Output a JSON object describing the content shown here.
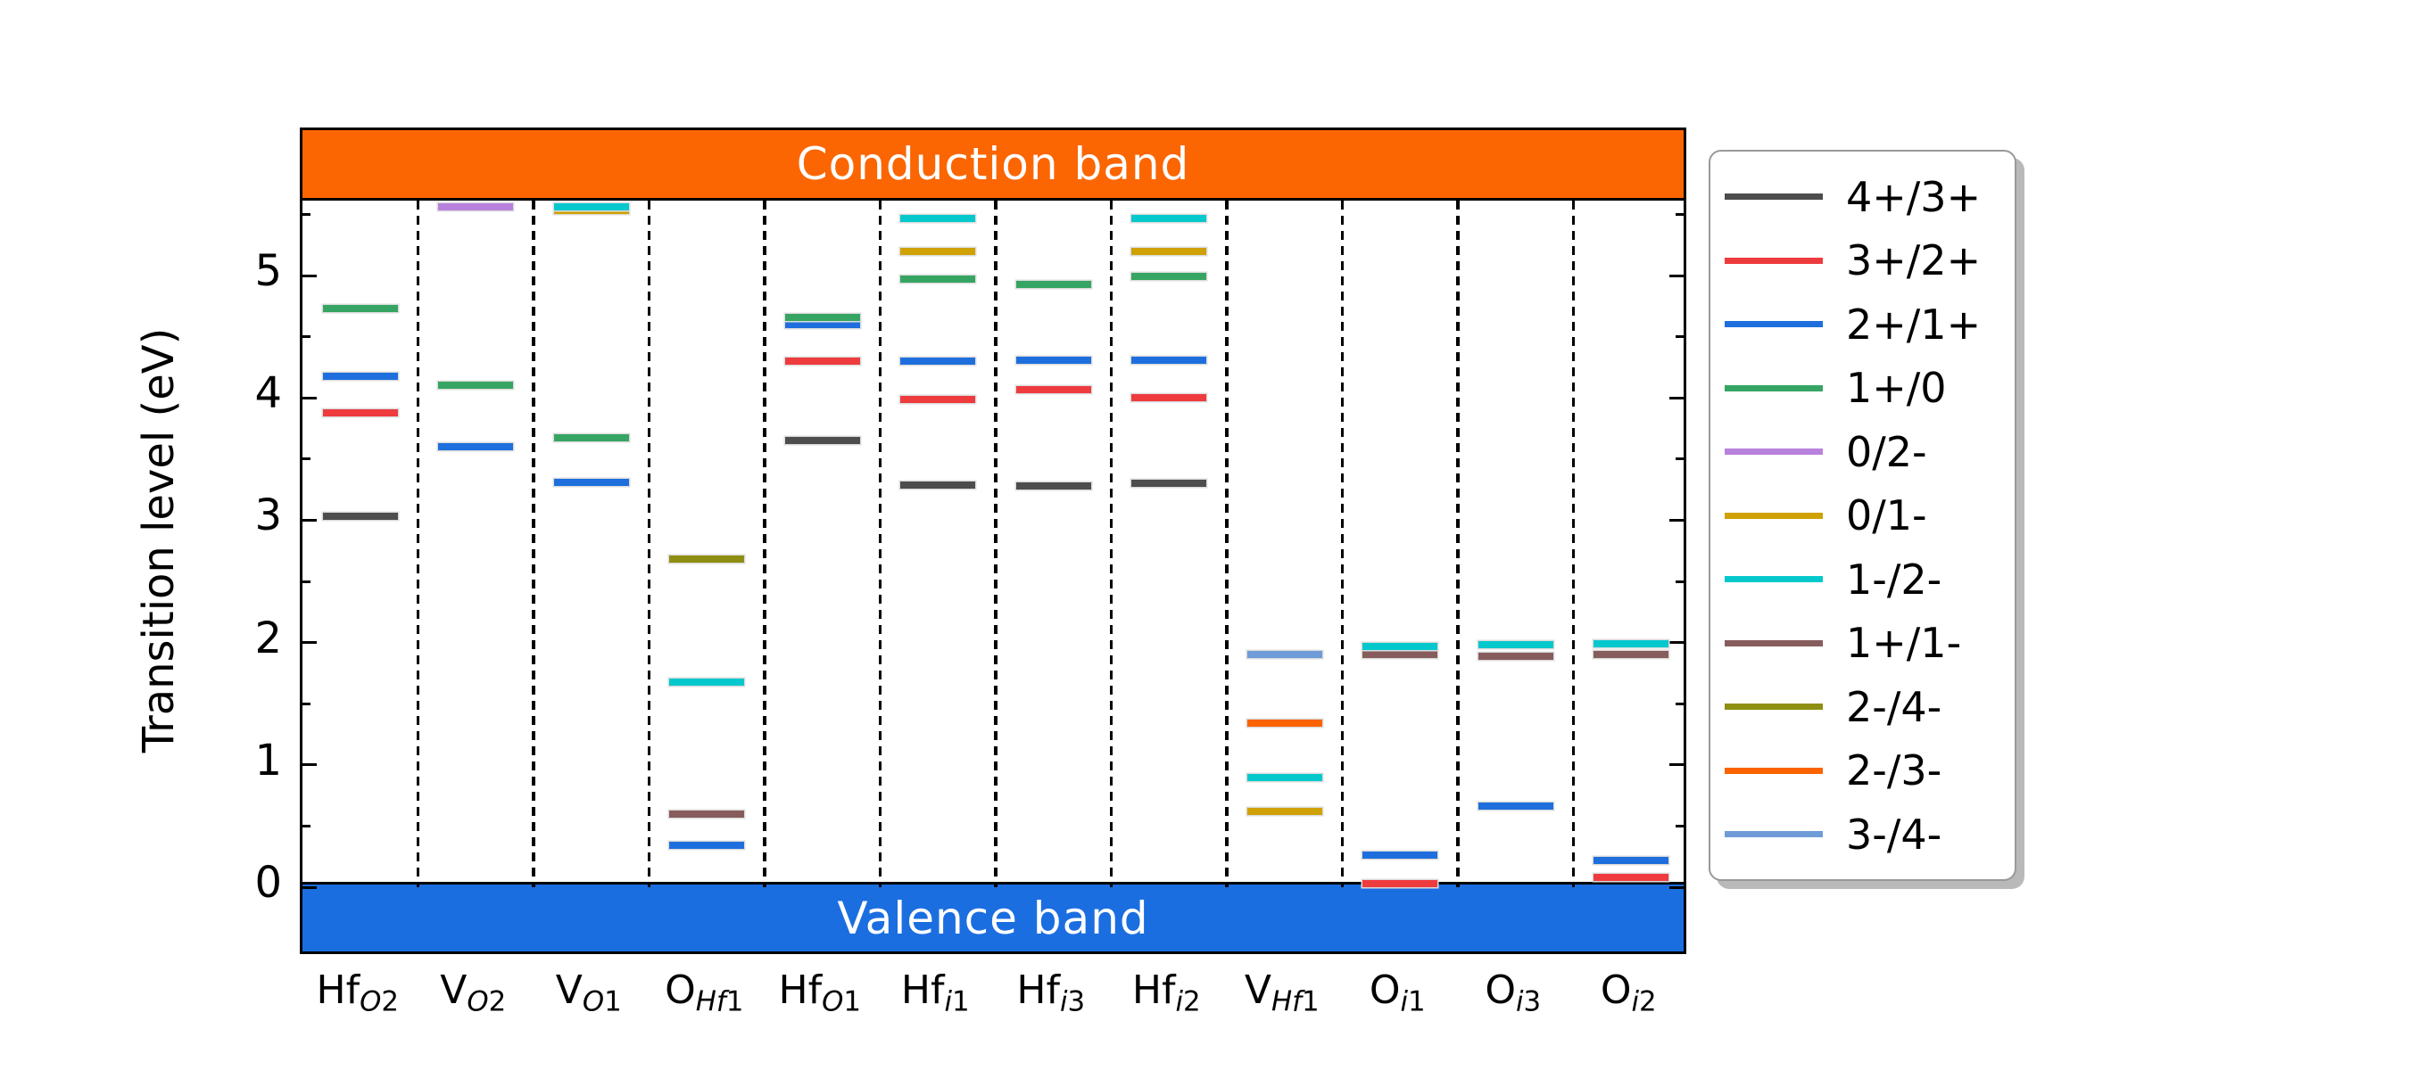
{
  "figure": {
    "conduction_label": "Conduction band",
    "valence_label": "Valence band",
    "ylabel": "Transition level (eV)"
  },
  "colors": {
    "conduction_band": "#fb6602",
    "valence_band": "#1b6ee0",
    "band_label_text": "#ffffff",
    "axis": "#000000",
    "legend_border": "#999999",
    "legend_shadow": "#b9b9b9"
  },
  "chart_data": {
    "type": "scatter",
    "subtype": "charge-state-transition-level-diagram",
    "title": "",
    "xlabel": "",
    "ylabel": "Transition level (eV)",
    "ylim": [
      -0.57,
      6.19
    ],
    "yticks": [
      0,
      1,
      2,
      3,
      4,
      5
    ],
    "minor_tick_step": 0.5,
    "grid": false,
    "legend_position": "outside-right",
    "valence_band_top_eV": 0,
    "conduction_band_bottom_eV": 5.61,
    "legend": [
      {
        "charge": "4+/3+",
        "color": "#4d4d4d"
      },
      {
        "charge": "3+/2+",
        "color": "#ee3b3e"
      },
      {
        "charge": "2+/1+",
        "color": "#1e6fdd"
      },
      {
        "charge": "1+/0",
        "color": "#36a563"
      },
      {
        "charge": "0/2-",
        "color": "#b981de"
      },
      {
        "charge": "0/1-",
        "color": "#cfa104"
      },
      {
        "charge": "1-/2-",
        "color": "#05c8cd"
      },
      {
        "charge": "1+/1-",
        "color": "#875c5c"
      },
      {
        "charge": "2-/4-",
        "color": "#8e8e12"
      },
      {
        "charge": "2-/3-",
        "color": "#fb6301"
      },
      {
        "charge": "3-/4-",
        "color": "#6f9cd6"
      }
    ],
    "columns": [
      {
        "id": "HfO2",
        "base": "Hf",
        "sub": "O",
        "idx": "2",
        "levels": [
          {
            "charge": "4+/3+",
            "eV": 3.03
          },
          {
            "charge": "3+/2+",
            "eV": 3.88
          },
          {
            "charge": "2+/1+",
            "eV": 4.18
          },
          {
            "charge": "1+/0",
            "eV": 4.73
          }
        ]
      },
      {
        "id": "VO2",
        "base": "V",
        "sub": "O",
        "idx": "2",
        "levels": [
          {
            "charge": "2+/1+",
            "eV": 3.6
          },
          {
            "charge": "1+/0",
            "eV": 4.1
          },
          {
            "charge": "0/2-",
            "eV": 5.56
          }
        ]
      },
      {
        "id": "VO1",
        "base": "V",
        "sub": "O",
        "idx": "1",
        "levels": [
          {
            "charge": "0/1-",
            "eV": 5.53
          },
          {
            "charge": "2+/1+",
            "eV": 3.31
          },
          {
            "charge": "1+/0",
            "eV": 3.67
          },
          {
            "charge": "1-/2-",
            "eV": 5.56
          }
        ]
      },
      {
        "id": "OHf1",
        "base": "O",
        "sub": "Hf",
        "idx": "1",
        "levels": [
          {
            "charge": "2+/1+",
            "eV": 0.34
          },
          {
            "charge": "1+/1-",
            "eV": 0.6
          },
          {
            "charge": "1-/2-",
            "eV": 1.68
          },
          {
            "charge": "2-/4-",
            "eV": 2.68
          }
        ]
      },
      {
        "id": "HfO1",
        "base": "Hf",
        "sub": "O",
        "idx": "1",
        "levels": [
          {
            "charge": "4+/3+",
            "eV": 3.65
          },
          {
            "charge": "3+/2+",
            "eV": 4.3
          },
          {
            "charge": "2+/1+",
            "eV": 4.6
          },
          {
            "charge": "1+/0",
            "eV": 4.66
          }
        ]
      },
      {
        "id": "Hfi1",
        "base": "Hf",
        "sub": "i",
        "idx": "1",
        "levels": [
          {
            "charge": "4+/3+",
            "eV": 3.29
          },
          {
            "charge": "3+/2+",
            "eV": 3.99
          },
          {
            "charge": "2+/1+",
            "eV": 4.3
          },
          {
            "charge": "1+/0",
            "eV": 4.97
          },
          {
            "charge": "0/1-",
            "eV": 5.2
          },
          {
            "charge": "1-/2-",
            "eV": 5.47
          }
        ]
      },
      {
        "id": "Hfi3",
        "base": "Hf",
        "sub": "i",
        "idx": "3",
        "levels": [
          {
            "charge": "4+/3+",
            "eV": 3.28
          },
          {
            "charge": "3+/2+",
            "eV": 4.07
          },
          {
            "charge": "2+/1+",
            "eV": 4.31
          },
          {
            "charge": "1+/0",
            "eV": 4.93
          }
        ]
      },
      {
        "id": "Hfi2",
        "base": "Hf",
        "sub": "i",
        "idx": "2",
        "levels": [
          {
            "charge": "4+/3+",
            "eV": 3.3
          },
          {
            "charge": "3+/2+",
            "eV": 4.0
          },
          {
            "charge": "2+/1+",
            "eV": 4.31
          },
          {
            "charge": "1+/0",
            "eV": 4.99
          },
          {
            "charge": "0/1-",
            "eV": 5.2
          },
          {
            "charge": "1-/2-",
            "eV": 5.47
          }
        ]
      },
      {
        "id": "VHf1",
        "base": "V",
        "sub": "Hf",
        "idx": "1",
        "levels": [
          {
            "charge": "0/1-",
            "eV": 0.62
          },
          {
            "charge": "1-/2-",
            "eV": 0.9
          },
          {
            "charge": "2-/3-",
            "eV": 1.34
          },
          {
            "charge": "3-/4-",
            "eV": 1.9
          }
        ]
      },
      {
        "id": "Oi1",
        "base": "O",
        "sub": "i",
        "idx": "1",
        "levels": [
          {
            "charge": "3+/2+",
            "eV": 0.03
          },
          {
            "charge": "2+/1+",
            "eV": 0.26
          },
          {
            "charge": "1+/1-",
            "eV": 1.9
          },
          {
            "charge": "1-/2-",
            "eV": 1.97
          }
        ]
      },
      {
        "id": "Oi3",
        "base": "O",
        "sub": "i",
        "idx": "3",
        "levels": [
          {
            "charge": "2+/1+",
            "eV": 0.66
          },
          {
            "charge": "1+/1-",
            "eV": 1.89
          },
          {
            "charge": "1-/2-",
            "eV": 1.98
          }
        ]
      },
      {
        "id": "Oi2",
        "base": "O",
        "sub": "i",
        "idx": "2",
        "levels": [
          {
            "charge": "3+/2+",
            "eV": 0.08
          },
          {
            "charge": "2+/1+",
            "eV": 0.22
          },
          {
            "charge": "1+/1-",
            "eV": 1.9
          },
          {
            "charge": "1-/2-",
            "eV": 1.99
          }
        ]
      }
    ]
  }
}
